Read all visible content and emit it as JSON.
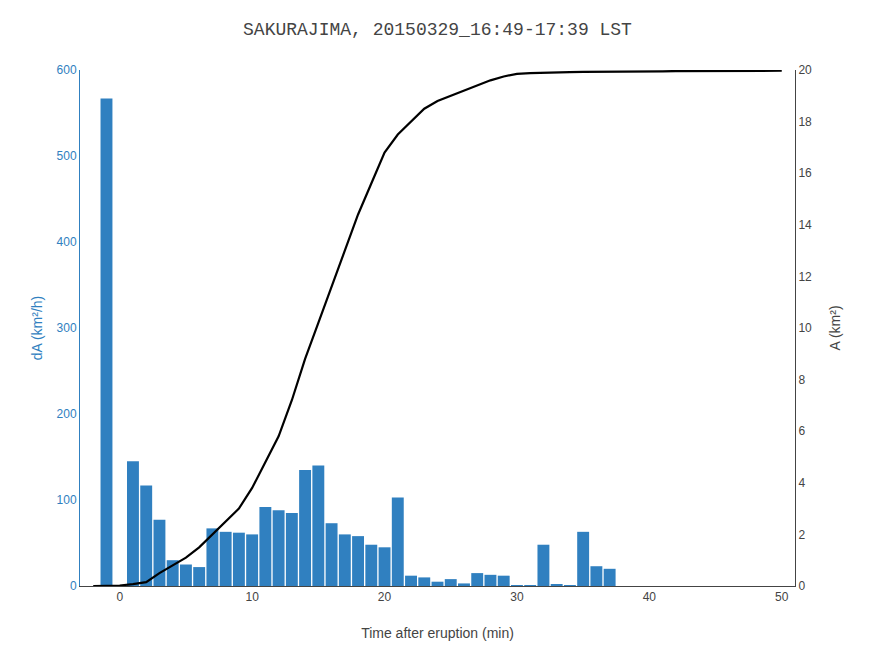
{
  "chart_data": {
    "type": "bar",
    "title": "SAKURAJIMA, 20150329_16:49-17:39 LST",
    "xlabel": "Time after eruption (min)",
    "ylabel": "dA (km²/h)",
    "y2label": "A (km²)",
    "xlim": [
      -3,
      51
    ],
    "xticks": [
      0,
      10,
      20,
      30,
      40,
      50
    ],
    "ylim": [
      0,
      600
    ],
    "yticks": [
      0,
      100,
      200,
      300,
      400,
      500,
      600
    ],
    "y2lim": [
      0,
      20
    ],
    "y2ticks": [
      0,
      2,
      4,
      6,
      8,
      10,
      12,
      14,
      16,
      18,
      20
    ],
    "grid": false,
    "series": [
      {
        "type": "bar",
        "color": "#3080c0",
        "x": [
          -1,
          1,
          2,
          3,
          4,
          5,
          6,
          7,
          8,
          9,
          10,
          11,
          12,
          13,
          14,
          15,
          16,
          17,
          18,
          19,
          20,
          21,
          22,
          23,
          24,
          25,
          26,
          27,
          28,
          29,
          30,
          31,
          32,
          33,
          34,
          35,
          36,
          37,
          38,
          39,
          40,
          41,
          42,
          43,
          44,
          45,
          46,
          47,
          48,
          49
        ],
        "values": [
          567,
          145,
          117,
          77,
          30,
          25,
          22,
          67,
          63,
          62,
          60,
          92,
          88,
          85,
          135,
          140,
          73,
          60,
          58,
          48,
          45,
          103,
          12,
          10,
          5,
          8,
          3,
          15,
          13,
          12,
          1,
          1,
          48,
          2,
          1,
          63,
          23,
          20,
          0,
          0,
          0,
          0,
          0,
          0,
          0,
          0,
          0,
          0,
          0,
          0
        ]
      },
      {
        "type": "line",
        "axis": "y2",
        "color": "#000000",
        "x": [
          -2,
          -1,
          0,
          1,
          2,
          3,
          4,
          5,
          6,
          7,
          8,
          9,
          10,
          11,
          12,
          13,
          14,
          15,
          16,
          17,
          18,
          19,
          20,
          21,
          22,
          23,
          24,
          25,
          26,
          27,
          28,
          29,
          30,
          31,
          32,
          33,
          34,
          35,
          36,
          37,
          38,
          39,
          40,
          41,
          42,
          43,
          44,
          45,
          46,
          47,
          48,
          49,
          50
        ],
        "values": [
          0.0,
          0.0,
          0.02,
          0.07,
          0.15,
          0.5,
          0.8,
          1.1,
          1.5,
          2.0,
          2.5,
          3.0,
          3.8,
          4.8,
          5.8,
          7.2,
          8.8,
          10.2,
          11.6,
          13.0,
          14.4,
          15.6,
          16.8,
          17.5,
          18.0,
          18.5,
          18.8,
          19.0,
          19.2,
          19.4,
          19.6,
          19.75,
          19.85,
          19.88,
          19.9,
          19.91,
          19.92,
          19.93,
          19.93,
          19.94,
          19.94,
          19.95,
          19.95,
          19.95,
          19.96,
          19.96,
          19.96,
          19.97,
          19.97,
          19.97,
          19.97,
          19.97,
          19.97
        ]
      }
    ]
  }
}
